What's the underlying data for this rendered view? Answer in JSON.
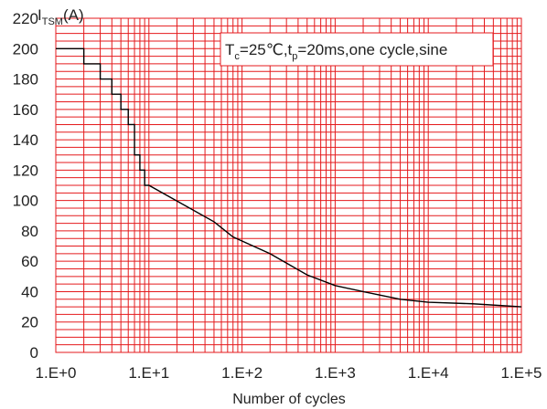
{
  "chart_data": {
    "type": "line",
    "x_scale": "log",
    "xlabel": "Number of cycles",
    "ylabel": {
      "base": "I",
      "sub": "TSM",
      "unit": "(A)"
    },
    "annotation": {
      "parts": [
        {
          "t": "T",
          "sub": false
        },
        {
          "t": "c",
          "sub": true
        },
        {
          "t": "=25℃,t",
          "sub": false
        },
        {
          "t": "p",
          "sub": true
        },
        {
          "t": "=20ms,one cycle,sine",
          "sub": false
        }
      ]
    },
    "xlim": [
      1,
      100000
    ],
    "ylim": [
      0,
      220
    ],
    "x_ticks": [
      {
        "value": 1,
        "label": "1.E+0"
      },
      {
        "value": 10,
        "label": "1.E+1"
      },
      {
        "value": 100,
        "label": "1.E+2"
      },
      {
        "value": 1000,
        "label": "1.E+3"
      },
      {
        "value": 10000,
        "label": "1.E+4"
      },
      {
        "value": 100000,
        "label": "1.E+5"
      }
    ],
    "y_ticks": [
      0,
      20,
      40,
      60,
      80,
      100,
      120,
      140,
      160,
      180,
      200,
      220
    ],
    "grid": true,
    "grid_color": "#e41a1c",
    "line_color": "#000000",
    "series": [
      {
        "points": [
          [
            1,
            200
          ],
          [
            2,
            200
          ],
          [
            2,
            190
          ],
          [
            3,
            190
          ],
          [
            3,
            180
          ],
          [
            4,
            180
          ],
          [
            4,
            170
          ],
          [
            5,
            170
          ],
          [
            5,
            160
          ],
          [
            6,
            160
          ],
          [
            6,
            150
          ],
          [
            7,
            150
          ],
          [
            7,
            140
          ],
          [
            7,
            130
          ],
          [
            8,
            130
          ],
          [
            8,
            120
          ],
          [
            9,
            120
          ],
          [
            9,
            110
          ],
          [
            10,
            110
          ],
          [
            50,
            86
          ],
          [
            80,
            76
          ],
          [
            200,
            65
          ],
          [
            500,
            51
          ],
          [
            1000,
            44
          ],
          [
            2000,
            40
          ],
          [
            5000,
            35
          ],
          [
            10000,
            33
          ],
          [
            30000,
            32
          ],
          [
            100000,
            30
          ]
        ]
      }
    ]
  }
}
